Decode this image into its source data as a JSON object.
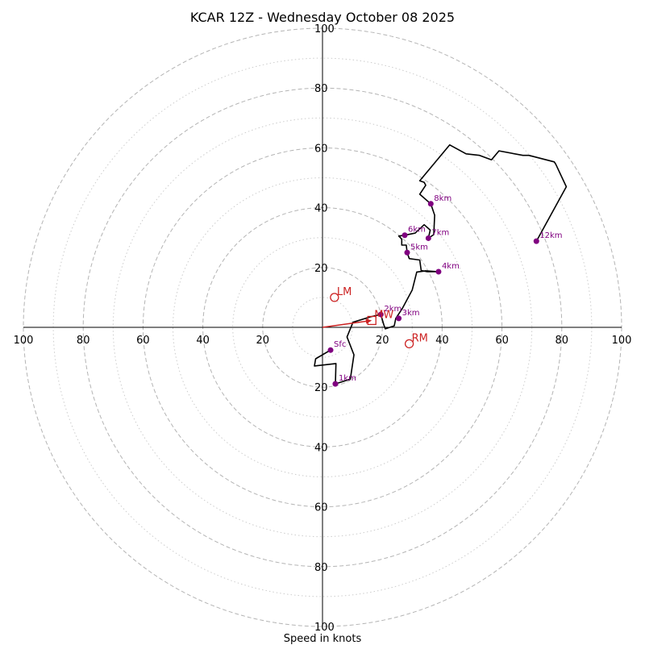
{
  "chart_data": {
    "type": "scatter",
    "title": "KCAR 12Z - Wednesday October 08 2025",
    "xlabel": "Speed in knots",
    "max_speed": 100,
    "dashed_rings": [
      20,
      40,
      60,
      80,
      100
    ],
    "dotted_rings": [
      10,
      30,
      50,
      70,
      90
    ],
    "x_tick_labels": [
      "100",
      "80",
      "60",
      "40",
      "20",
      "20",
      "40",
      "60",
      "80",
      "100"
    ],
    "x_tick_values": [
      -100,
      -80,
      -60,
      -40,
      -20,
      20,
      40,
      60,
      80,
      100
    ],
    "y_tick_labels": [
      "100",
      "80",
      "60",
      "40",
      "20",
      "20",
      "40",
      "60",
      "80",
      "100"
    ],
    "y_tick_values": [
      100,
      80,
      60,
      40,
      20,
      -20,
      -40,
      -60,
      -80,
      -100
    ],
    "hodograph_color": "#000000",
    "height_marker_color": "#800080",
    "storm_motion_color": "#cc2222",
    "hodograph_trace": [
      [
        2.7,
        -7.6
      ],
      [
        -2.3,
        -10.5
      ],
      [
        -2.7,
        -12.9
      ],
      [
        4.5,
        -12.1
      ],
      [
        4.3,
        -18.9
      ],
      [
        9.3,
        -17.3
      ],
      [
        10.5,
        -9.2
      ],
      [
        8.2,
        -3.2
      ],
      [
        10.2,
        1.7
      ],
      [
        16,
        3.5
      ],
      [
        19.5,
        4.3
      ],
      [
        20.5,
        0.8
      ],
      [
        21,
        -0.5
      ],
      [
        24,
        0.5
      ],
      [
        24.5,
        3
      ],
      [
        25.5,
        4.5
      ],
      [
        26.8,
        6.5
      ],
      [
        30,
        12.5
      ],
      [
        31.5,
        18.5
      ],
      [
        34.5,
        18.9
      ],
      [
        38.8,
        18.6
      ],
      [
        35,
        18.6
      ],
      [
        33,
        19
      ],
      [
        32.5,
        22.5
      ],
      [
        29,
        23
      ],
      [
        28.3,
        25
      ],
      [
        28,
        27.5
      ],
      [
        26.5,
        27.5
      ],
      [
        26.5,
        29.5
      ],
      [
        25.5,
        30.5
      ],
      [
        27.5,
        30.8
      ],
      [
        31,
        31.5
      ],
      [
        34,
        34.3
      ],
      [
        36,
        32.5
      ],
      [
        35.4,
        29.8
      ],
      [
        37.2,
        31
      ],
      [
        37.5,
        37.5
      ],
      [
        36.2,
        41.3
      ],
      [
        32.5,
        44.5
      ],
      [
        34.5,
        47.5
      ],
      [
        34,
        48.5
      ],
      [
        32.5,
        49
      ],
      [
        42.5,
        61
      ],
      [
        48,
        58
      ],
      [
        52.5,
        57.5
      ],
      [
        56.5,
        56
      ],
      [
        59,
        59
      ],
      [
        67,
        57.5
      ],
      [
        69,
        57.5
      ],
      [
        77.5,
        55.3
      ],
      [
        78,
        54.5
      ],
      [
        81.5,
        47
      ],
      [
        71.5,
        28.8
      ]
    ],
    "height_markers": [
      {
        "label": "Sfc",
        "u": 2.7,
        "v": -7.6
      },
      {
        "label": "1km",
        "u": 4.3,
        "v": -18.9
      },
      {
        "label": "2km",
        "u": 19.5,
        "v": 4.3
      },
      {
        "label": "3km",
        "u": 25.5,
        "v": 3
      },
      {
        "label": "4km",
        "u": 38.8,
        "v": 18.6
      },
      {
        "label": "5km",
        "u": 28.3,
        "v": 25
      },
      {
        "label": "6km",
        "u": 27.5,
        "v": 30.8
      },
      {
        "label": "7km",
        "u": 35.4,
        "v": 29.8
      },
      {
        "label": "8km",
        "u": 36.2,
        "v": 41.3
      },
      {
        "label": "12km",
        "u": 71.5,
        "v": 28.8
      }
    ],
    "storm_motion": [
      {
        "label": "LM",
        "u": 4,
        "v": 10,
        "shape": "circle"
      },
      {
        "label": "RM",
        "u": 29,
        "v": -5.5,
        "shape": "circle"
      },
      {
        "label": "MW",
        "u": 16.5,
        "v": 2.3,
        "shape": "square"
      }
    ],
    "mean_wind_vector": {
      "u": 16.5,
      "v": 2.3
    }
  }
}
